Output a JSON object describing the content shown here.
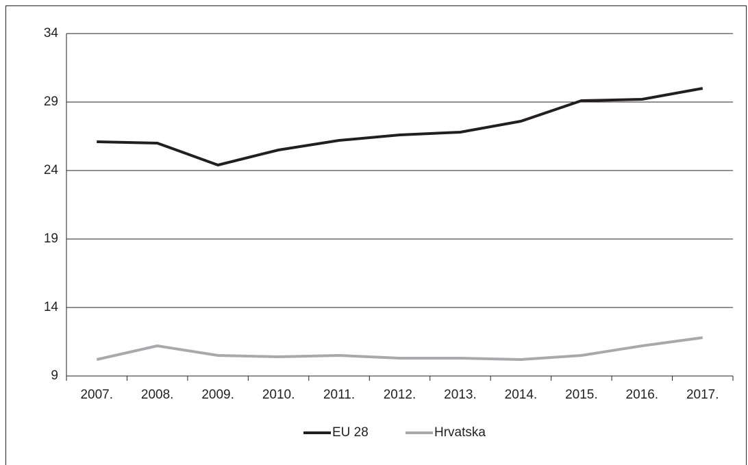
{
  "chart_data": {
    "type": "line",
    "categories": [
      "2007.",
      "2008.",
      "2009.",
      "2010.",
      "2011.",
      "2012.",
      "2013.",
      "2014.",
      "2015.",
      "2016.",
      "2017."
    ],
    "series": [
      {
        "name": "EU 28",
        "color": "#231f20",
        "values": [
          26.1,
          26.0,
          24.4,
          25.5,
          26.2,
          26.6,
          26.8,
          27.6,
          29.1,
          29.2,
          30.0
        ]
      },
      {
        "name": "Hrvatska",
        "color": "#a7a9ac",
        "values": [
          10.2,
          11.2,
          10.5,
          10.4,
          10.5,
          10.3,
          10.3,
          10.2,
          10.5,
          11.2,
          11.8
        ]
      }
    ],
    "ylim": [
      9,
      34
    ],
    "yticks": [
      9,
      14,
      19,
      24,
      29,
      34
    ],
    "grid": true,
    "legend": "bottom"
  }
}
